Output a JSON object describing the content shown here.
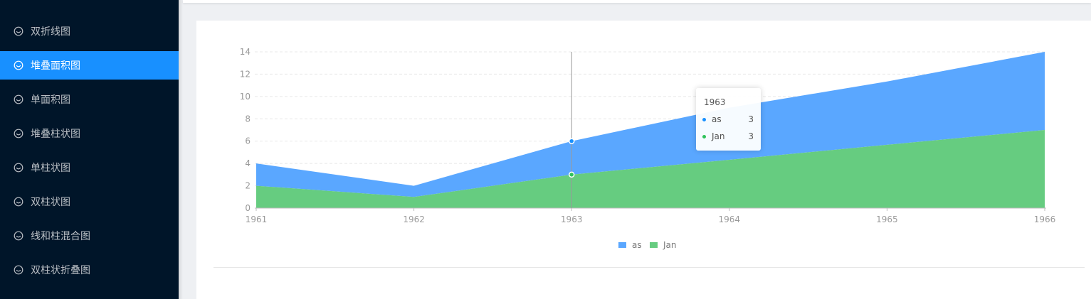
{
  "sidebar": {
    "items": [
      {
        "label": "双折线图",
        "active": false
      },
      {
        "label": "堆叠面积图",
        "active": true
      },
      {
        "label": "单面积图",
        "active": false
      },
      {
        "label": "堆叠柱状图",
        "active": false
      },
      {
        "label": "单柱状图",
        "active": false
      },
      {
        "label": "双柱状图",
        "active": false
      },
      {
        "label": "线和柱混合图",
        "active": false
      },
      {
        "label": "双柱状折叠图",
        "active": false
      }
    ],
    "icon": "smile-icon"
  },
  "colors": {
    "sidebar_bg": "#001529",
    "active": "#1890ff",
    "series_as": "#5aa7ff",
    "series_jan": "#66cc80"
  },
  "chart_data": {
    "type": "area",
    "stacked": true,
    "x": [
      "1961",
      "1962",
      "1963",
      "1964",
      "1965",
      "1966"
    ],
    "series": [
      {
        "name": "Jan",
        "values": [
          2,
          1,
          3,
          4.33,
          5.67,
          7
        ],
        "color": "#66cc80"
      },
      {
        "name": "as",
        "values": [
          2,
          1,
          3,
          4.67,
          5.67,
          7
        ],
        "color": "#5aa7ff"
      }
    ],
    "ylim": [
      0,
      14
    ],
    "yticks": [
      0,
      2,
      4,
      6,
      8,
      10,
      12,
      14
    ],
    "grid": true,
    "legend": "bottom-center",
    "tooltip": {
      "title": "1963",
      "rows": [
        {
          "name": "as",
          "value": "3",
          "color": "#1890ff"
        },
        {
          "name": "Jan",
          "value": "3",
          "color": "#2fc25b"
        }
      ]
    }
  }
}
